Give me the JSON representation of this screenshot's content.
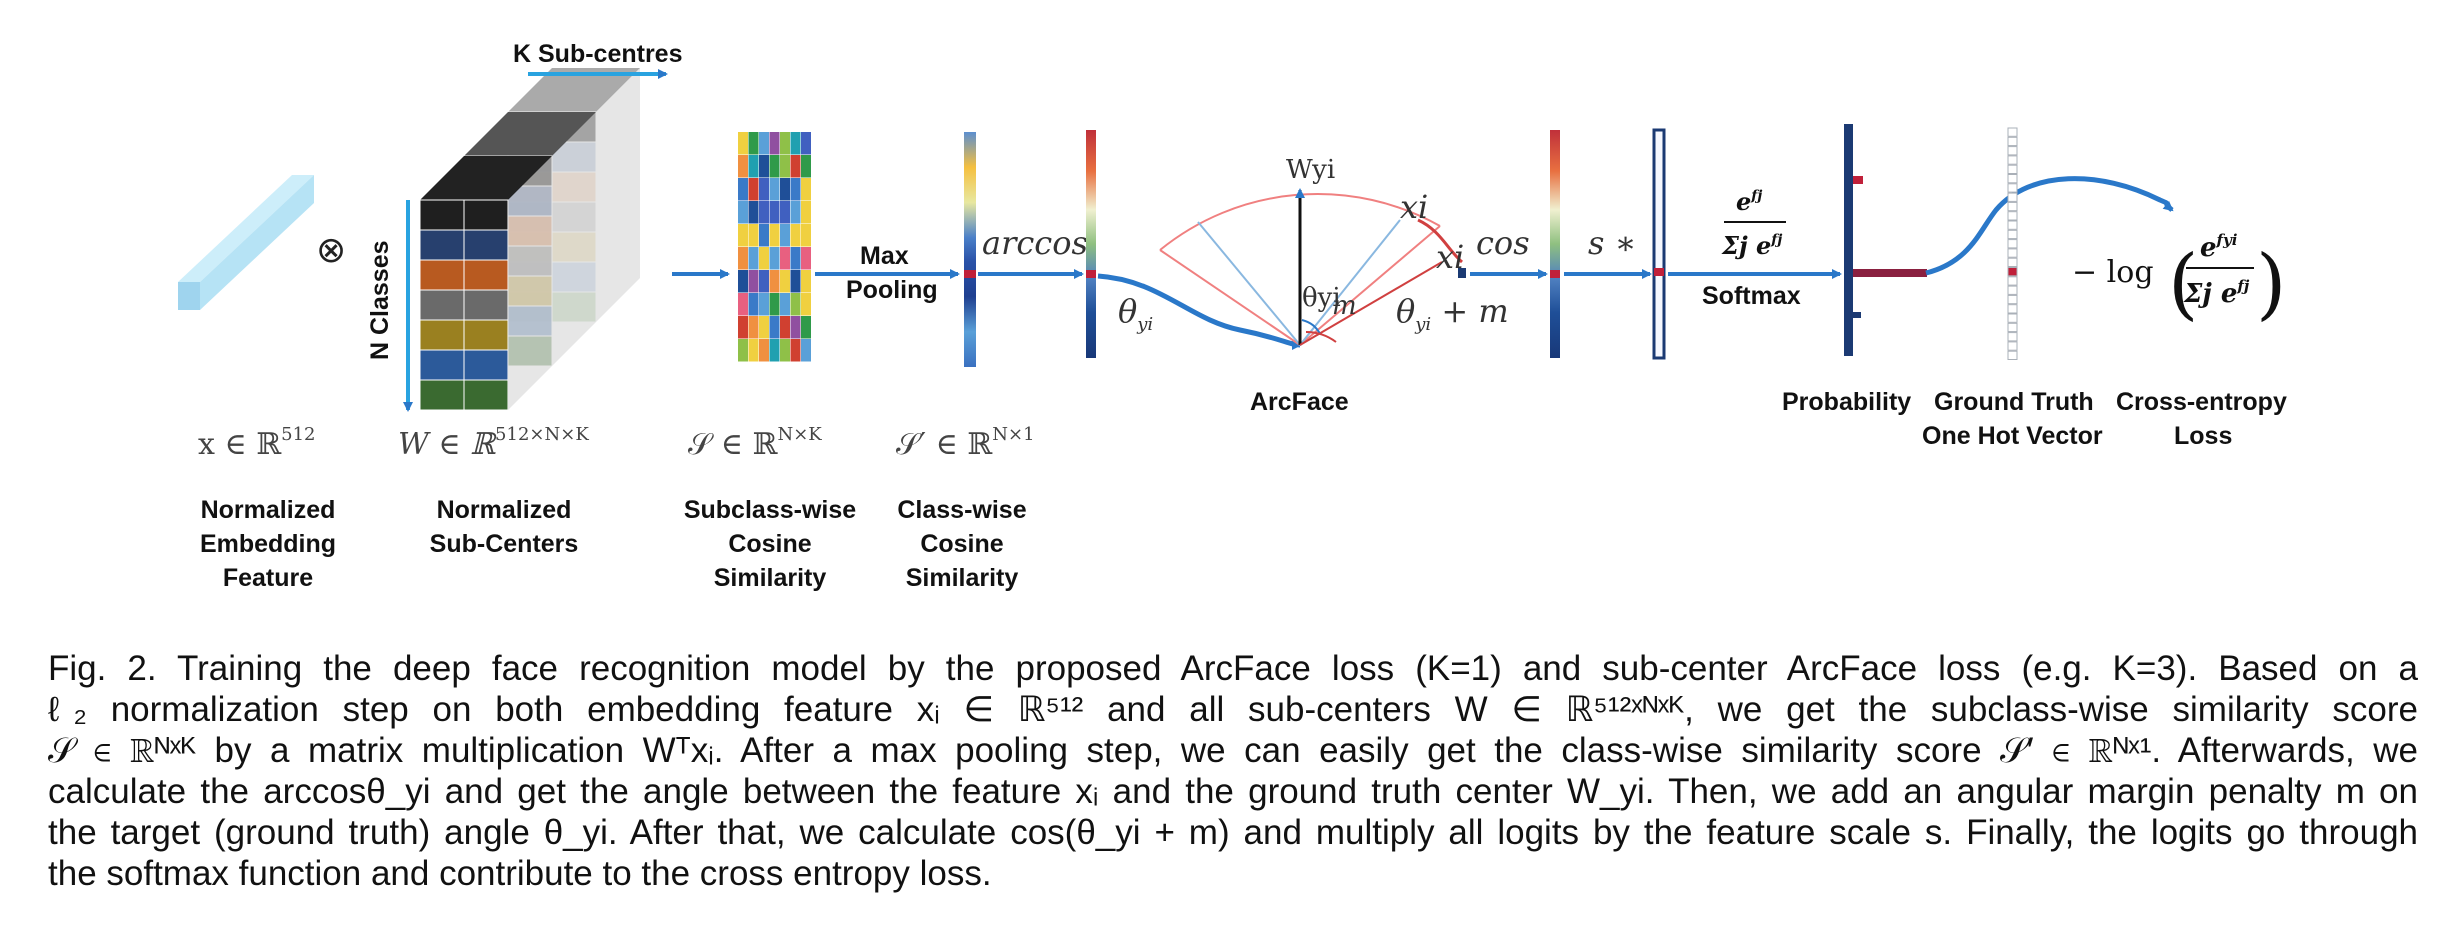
{
  "figure": {
    "labels": {
      "k_sub_centres": "K Sub-centres",
      "n_classes": "N Classes",
      "otimes": "⊗",
      "max_pooling_1": "Max",
      "max_pooling_2": "Pooling",
      "arccos": "arccos",
      "theta_yi": "θ",
      "theta_yi_sub": "yi",
      "wyi": "Wyi",
      "xi_1": "xi",
      "xi_2": "xi",
      "m": "m",
      "theta_small": "θyi",
      "theta_plus_m": "θ",
      "theta_plus_m_tail": " + m",
      "cos": "cos",
      "s_star": "s ∗",
      "arcface": "ArcFace",
      "softmax_num": "e",
      "softmax_num_sup": "fj",
      "softmax_den": "Σj e",
      "softmax_den_sup": "fj",
      "softmax": "Softmax",
      "loss_prefix": "− log",
      "loss_num": "e",
      "loss_num_sup": "fyi",
      "loss_den": "Σj e",
      "loss_den_sup": "fj"
    },
    "math_labels": {
      "x": "x ∈ ℝ",
      "x_sup": "512",
      "w": "W  ∈ ℝ",
      "w_sup": "512×N×K",
      "s": "𝒮 ∈ ℝ",
      "s_sup": "N×K",
      "s_prime": "𝒮′ ∈ ℝ",
      "s_prime_sup": "N×1"
    },
    "names": {
      "embedding": [
        "Normalized",
        "Embedding",
        "Feature"
      ],
      "subcenters": [
        "Normalized",
        "Sub-Centers"
      ],
      "subclass_sim": [
        "Subclass-wise",
        "Cosine",
        "Similarity"
      ],
      "class_sim": [
        "Class-wise",
        "Cosine",
        "Similarity"
      ],
      "probability": "Probability",
      "ground_truth": [
        "Ground Truth",
        "One Hot Vector"
      ],
      "ce_loss": [
        "Cross-entropy",
        "Loss"
      ]
    },
    "colors": {
      "arrow": "#2a78c9",
      "cube_face": "#a9dcf2",
      "bar_dark": "#1b3a73",
      "highlight": "#c0203a",
      "arc": "#f08080"
    }
  },
  "caption": {
    "lines": [
      "Fig. 2. Training the deep face recognition model by the proposed ArcFace loss (K=1) and sub-center ArcFace loss (e.g. K=3). Based on a",
      "ℓ₂ normalization step on both embedding feature xᵢ ∈ ℝ⁵¹² and all sub-centers W ∈ ℝ⁵¹²ˣᴺˣᴷ, we get the subclass-wise similarity score",
      "𝒮 ∈ ℝᴺˣᴷ by a matrix multiplication Wᵀxᵢ. After a max pooling step, we can easily get the class-wise similarity score 𝒮′ ∈ ℝᴺˣ¹. Afterwards, we",
      "calculate the arccosθ_yi and get the angle between the feature xᵢ and the ground truth center W_yi. Then, we add an angular margin penalty m on",
      "the target (ground truth) angle θ_yi. After that, we calculate cos(θ_yi + m) and multiply all logits by the feature scale s. Finally, the logits go through",
      "the softmax function and contribute to the cross entropy loss."
    ]
  }
}
